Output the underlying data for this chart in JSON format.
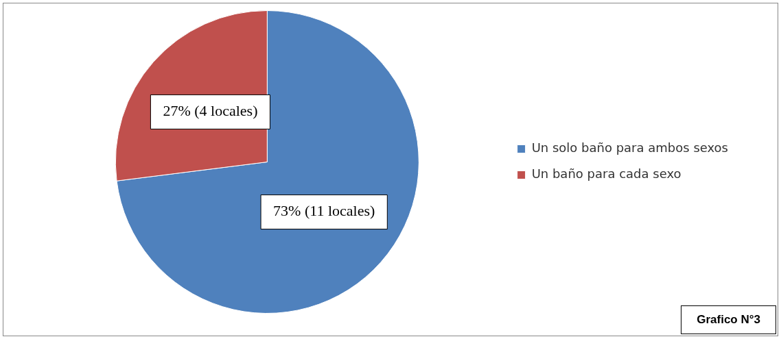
{
  "chart_data": {
    "type": "pie",
    "categories": [
      "Un solo baño para ambos sexos",
      "Un baño para cada sexo"
    ],
    "values": [
      73,
      27
    ],
    "colors": [
      "#4f81bd",
      "#c0504d"
    ],
    "value_labels": [
      "73% (11 locales)",
      "27% (4 locales)"
    ],
    "legend": "right",
    "annotations": [
      "Grafico N°3"
    ]
  }
}
